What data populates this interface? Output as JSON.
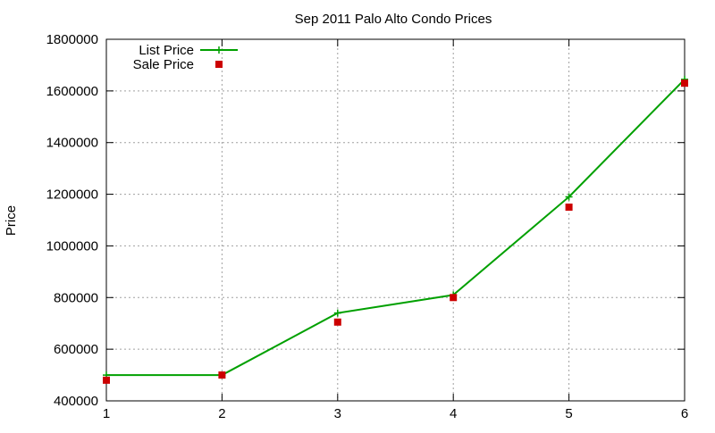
{
  "chart_data": {
    "type": "line",
    "title": "Sep 2011 Palo Alto Condo Prices",
    "xlabel": "",
    "ylabel": "Price",
    "x": [
      1,
      2,
      3,
      4,
      5,
      6
    ],
    "xlim": [
      1,
      6
    ],
    "ylim": [
      400000,
      1800000
    ],
    "xticks": [
      1,
      2,
      3,
      4,
      5,
      6
    ],
    "yticks": [
      400000,
      600000,
      800000,
      1000000,
      1200000,
      1400000,
      1600000,
      1800000
    ],
    "grid": true,
    "legend_position": "top-left",
    "series": [
      {
        "name": "List Price",
        "style": "line-with-plus-markers",
        "color": "#00a000",
        "values": [
          500000,
          500000,
          740000,
          810000,
          1190000,
          1645000
        ]
      },
      {
        "name": "Sale Price",
        "style": "square-markers",
        "color": "#cc0000",
        "values": [
          480000,
          500000,
          705000,
          800000,
          1150000,
          1630000
        ]
      }
    ]
  }
}
